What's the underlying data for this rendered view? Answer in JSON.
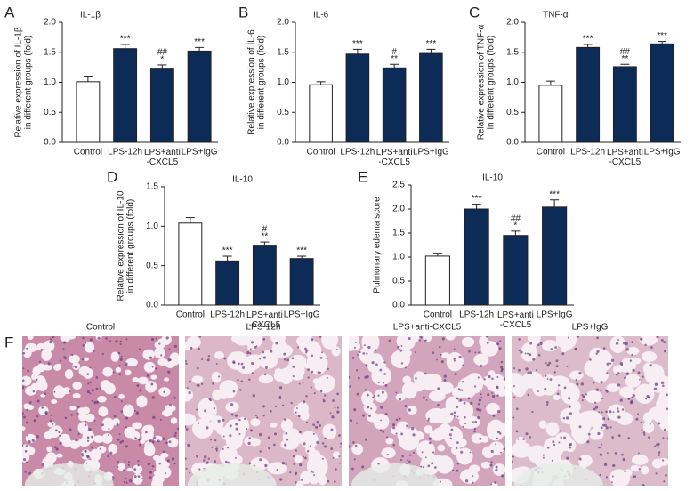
{
  "chart_data": [
    {
      "type": "bar",
      "panel": "A",
      "title": "IL-1β",
      "ylabel": [
        "Relative expression of IL-1β",
        "in different groups (fold)"
      ],
      "categories": [
        "Control",
        "LPS-12h",
        "LPS+anti\n-CXCL5",
        "LPS+IgG"
      ],
      "values": [
        1.01,
        1.56,
        1.22,
        1.52
      ],
      "errors": [
        0.08,
        0.07,
        0.07,
        0.06
      ],
      "bar_labels": [
        [],
        [
          "***"
        ],
        [
          "##",
          "*"
        ],
        [
          "***"
        ]
      ],
      "colors": [
        "#ffffff",
        "#0d2b57",
        "#0d2b57",
        "#0d2b57"
      ],
      "ylim": [
        0,
        2
      ],
      "yticks": [
        {
          "value": 0,
          "label": "0.0"
        },
        0.5,
        {
          "value": 1,
          "label": "1.0"
        },
        1.5,
        {
          "value": 2,
          "label": "2.0"
        }
      ]
    },
    {
      "type": "bar",
      "panel": "B",
      "title": "IL-6",
      "ylabel": [
        "Relative expression of IL-6",
        "in different groups (fold)"
      ],
      "categories": [
        "Control",
        "LPS-12h",
        "LPS+anti\n-CXCL5",
        "LPS+IgG"
      ],
      "values": [
        0.96,
        1.47,
        1.24,
        1.48
      ],
      "errors": [
        0.05,
        0.08,
        0.06,
        0.07
      ],
      "bar_labels": [
        [],
        [
          "***"
        ],
        [
          "#",
          "**"
        ],
        [
          "***"
        ]
      ],
      "colors": [
        "#ffffff",
        "#0d2b57",
        "#0d2b57",
        "#0d2b57"
      ],
      "ylim": [
        0,
        2
      ],
      "yticks": [
        {
          "value": 0,
          "label": "0.0"
        },
        0.5,
        {
          "value": 1,
          "label": "1.0"
        },
        1.5,
        {
          "value": 2,
          "label": "2.0"
        }
      ]
    },
    {
      "type": "bar",
      "panel": "C",
      "title": "TNF-α",
      "ylabel": [
        "Relative expression of TNF-α",
        "in different groups (fold)"
      ],
      "categories": [
        "Control",
        "LPS-12h",
        "LPS+anti\n-CXCL5",
        "LPS+IgG"
      ],
      "values": [
        0.95,
        1.58,
        1.26,
        1.64
      ],
      "errors": [
        0.07,
        0.05,
        0.04,
        0.04
      ],
      "bar_labels": [
        [],
        [
          "***"
        ],
        [
          "##",
          "**"
        ],
        [
          "***"
        ]
      ],
      "colors": [
        "#ffffff",
        "#0d2b57",
        "#0d2b57",
        "#0d2b57"
      ],
      "ylim": [
        0,
        2
      ],
      "yticks": [
        {
          "value": 0,
          "label": "0.0"
        },
        0.5,
        {
          "value": 1,
          "label": "1.0"
        },
        1.5,
        {
          "value": 2,
          "label": "2.0"
        }
      ]
    },
    {
      "type": "bar",
      "panel": "D",
      "title": "IL-10",
      "ylabel": [
        "Relative expression of IL-10",
        "in different groups (fold)"
      ],
      "categories": [
        "Control",
        "LPS-12h",
        "LPS+anti\n-CXCL5",
        "LPS+IgG"
      ],
      "values": [
        1.04,
        0.56,
        0.76,
        0.59
      ],
      "errors": [
        0.07,
        0.06,
        0.04,
        0.03
      ],
      "bar_labels": [
        [],
        [
          "***"
        ],
        [
          "#",
          "**"
        ],
        [
          "***"
        ]
      ],
      "colors": [
        "#ffffff",
        "#0d2b57",
        "#0d2b57",
        "#0d2b57"
      ],
      "ylim": [
        0,
        1.5
      ],
      "yticks": [
        {
          "value": 0,
          "label": "0.0"
        },
        0.5,
        {
          "value": 1,
          "label": "1.0"
        },
        1.5
      ]
    },
    {
      "type": "bar",
      "panel": "E",
      "title": "IL-10",
      "ylabel": [
        "Pulmonary edema score"
      ],
      "categories": [
        "Control",
        "LPS-12h",
        "LPS+anti\n-CXCL5",
        "LPS+IgG"
      ],
      "values": [
        1.02,
        2.0,
        1.45,
        2.04
      ],
      "errors": [
        0.06,
        0.1,
        0.09,
        0.15
      ],
      "bar_labels": [
        [],
        [
          "***"
        ],
        [
          "##",
          "*"
        ],
        [
          "***"
        ]
      ],
      "colors": [
        "#ffffff",
        "#0d2b57",
        "#0d2b57",
        "#0d2b57"
      ],
      "ylim": [
        0,
        2.5
      ],
      "yticks": [
        {
          "value": 0,
          "label": "0.0"
        },
        0.5,
        {
          "value": 1,
          "label": "1.0"
        },
        1.5,
        {
          "value": 2,
          "label": "2.0"
        },
        2.5
      ]
    }
  ],
  "images": {
    "panel": "F",
    "labels": [
      "Control",
      "LPS-12h",
      "LPS+anti-CXCL5",
      "LPS+IgG"
    ]
  }
}
